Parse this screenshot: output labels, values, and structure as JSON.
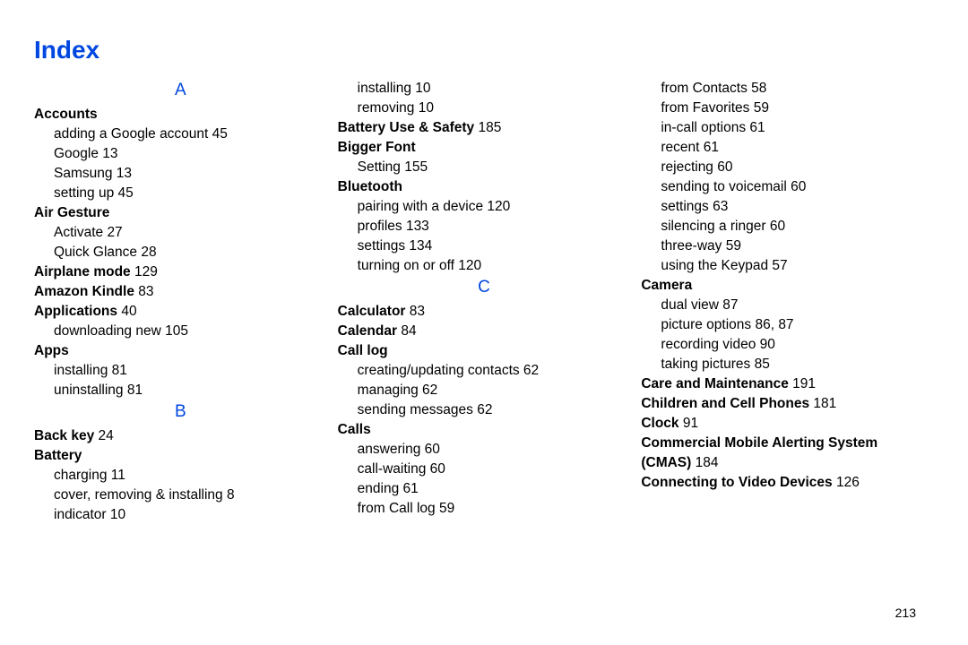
{
  "title": "Index",
  "pageNumber": "213",
  "col1": {
    "letterA": "A",
    "accounts": "Accounts",
    "accounts_sub1": "adding a Google account 45",
    "accounts_sub2": "Google 13",
    "accounts_sub3": "Samsung 13",
    "accounts_sub4": "setting up 45",
    "airGesture": "Air Gesture",
    "airGesture_sub1": "Activate 27",
    "airGesture_sub2": "Quick Glance 28",
    "airplaneMode_term": "Airplane mode",
    "airplaneMode_page": " 129",
    "amazonKindle_term": "Amazon Kindle",
    "amazonKindle_page": " 83",
    "applications_term": "Applications",
    "applications_page": " 40",
    "applications_sub1": "downloading new 105",
    "apps": "Apps",
    "apps_sub1": "installing 81",
    "apps_sub2": "uninstalling 81",
    "letterB": "B",
    "backKey_term": "Back key",
    "backKey_page": " 24",
    "battery": "Battery",
    "battery_sub1": "charging 11",
    "battery_sub2": "cover, removing & installing 8",
    "battery_sub3": "indicator 10"
  },
  "col2": {
    "cont_sub1": "installing 10",
    "cont_sub2": "removing 10",
    "batteryUse_term": "Battery Use & Safety",
    "batteryUse_page": " 185",
    "biggerFont": "Bigger Font",
    "biggerFont_sub1": "Setting 155",
    "bluetooth": "Bluetooth",
    "bluetooth_sub1": "pairing with a device 120",
    "bluetooth_sub2": "profiles 133",
    "bluetooth_sub3": "settings 134",
    "bluetooth_sub4": "turning on or off 120",
    "letterC": "C",
    "calculator_term": "Calculator",
    "calculator_page": " 83",
    "calendar_term": "Calendar",
    "calendar_page": " 84",
    "callLog": "Call log",
    "callLog_sub1": "creating/updating contacts 62",
    "callLog_sub2": "managing 62",
    "callLog_sub3": "sending messages 62",
    "calls": "Calls",
    "calls_sub1": "answering 60",
    "calls_sub2": "call-waiting 60",
    "calls_sub3": "ending 61",
    "calls_sub4": "from Call log 59"
  },
  "col3": {
    "calls_sub5": "from Contacts 58",
    "calls_sub6": "from Favorites 59",
    "calls_sub7": "in-call options 61",
    "calls_sub8": "recent 61",
    "calls_sub9": "rejecting 60",
    "calls_sub10": "sending to voicemail 60",
    "calls_sub11": "settings 63",
    "calls_sub12": "silencing a ringer 60",
    "calls_sub13": "three-way 59",
    "calls_sub14": "using the Keypad 57",
    "camera": "Camera",
    "camera_sub1": "dual view 87",
    "camera_sub2": "picture options 86, 87",
    "camera_sub3": "recording video 90",
    "camera_sub4": "taking pictures 85",
    "care_term": "Care and Maintenance",
    "care_page": " 191",
    "children_term": "Children and Cell Phones",
    "children_page": " 181",
    "clock_term": "Clock",
    "clock_page": " 91",
    "cmas_term1": "Commercial Mobile Alerting System",
    "cmas_term2": "(CMAS)",
    "cmas_page": " 184",
    "video_term": "Connecting to Video Devices",
    "video_page": " 126"
  }
}
